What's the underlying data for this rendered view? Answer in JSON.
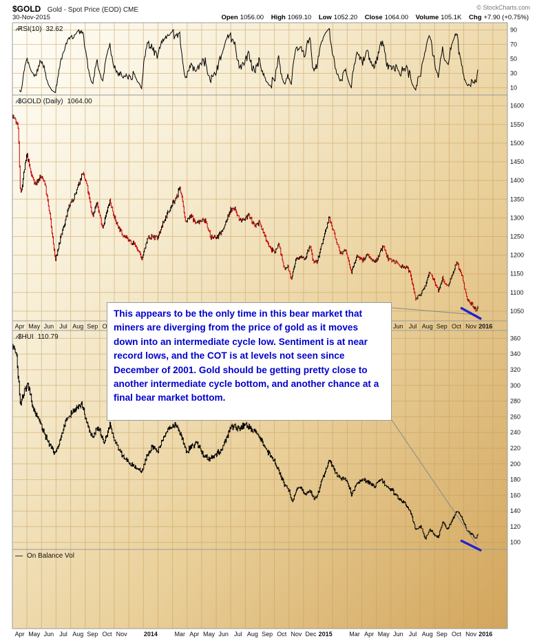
{
  "header": {
    "symbol": "$GOLD",
    "description": "Gold - Spot Price (EOD) CME",
    "copyright": "© StockCharts.com",
    "date": "30-Nov-2015",
    "quote": [
      {
        "label": "Open",
        "value": "1056.00"
      },
      {
        "label": "High",
        "value": "1069.10"
      },
      {
        "label": "Low",
        "value": "1052.20"
      },
      {
        "label": "Close",
        "value": "1064.00"
      },
      {
        "label": "Volume",
        "value": "105.1K"
      },
      {
        "label": "Chg",
        "value": "+7.90 (+0.75%)"
      }
    ]
  },
  "panels": {
    "rsi": {
      "name": "RSI(10)",
      "value": "32.62"
    },
    "gold": {
      "name": "$GOLD (Daily)",
      "value": "1064.00"
    },
    "hui": {
      "name": "$HUI",
      "value": "110.79"
    },
    "obv": {
      "name": "On Balance Vol"
    }
  },
  "annotation": {
    "text": "This appears to be the only time in this bear market that miners are diverging from the price of gold as it moves down into an intermediate cycle low. Sentiment is at near record lows, and the COT is at levels not seen since December of 2001. Gold should be getting pretty close to another intermediate cycle bottom, and another chance at a final bear market bottom."
  },
  "x_axis": {
    "unit": "months from Apr-2013",
    "total_months": 34,
    "labels": [
      {
        "t": 0,
        "label": "Apr"
      },
      {
        "t": 1,
        "label": "May"
      },
      {
        "t": 2,
        "label": "Jun"
      },
      {
        "t": 3,
        "label": "Jul"
      },
      {
        "t": 4,
        "label": "Aug"
      },
      {
        "t": 5,
        "label": "Sep"
      },
      {
        "t": 6,
        "label": "Oct"
      },
      {
        "t": 7,
        "label": "Nov"
      },
      {
        "t": 9,
        "label": "2014",
        "bold": true
      },
      {
        "t": 11,
        "label": "Mar"
      },
      {
        "t": 12,
        "label": "Apr"
      },
      {
        "t": 13,
        "label": "May"
      },
      {
        "t": 14,
        "label": "Jun"
      },
      {
        "t": 15,
        "label": "Jul"
      },
      {
        "t": 16,
        "label": "Aug"
      },
      {
        "t": 17,
        "label": "Sep"
      },
      {
        "t": 18,
        "label": "Oct"
      },
      {
        "t": 19,
        "label": "Nov"
      },
      {
        "t": 20,
        "label": "Dec"
      },
      {
        "t": 21,
        "label": "2015",
        "bold": true
      },
      {
        "t": 23,
        "label": "Mar"
      },
      {
        "t": 24,
        "label": "Apr"
      },
      {
        "t": 25,
        "label": "May"
      },
      {
        "t": 26,
        "label": "Jun"
      },
      {
        "t": 27,
        "label": "Jul"
      },
      {
        "t": 28,
        "label": "Aug"
      },
      {
        "t": 29,
        "label": "Sep"
      },
      {
        "t": 30,
        "label": "Oct"
      },
      {
        "t": 31,
        "label": "Nov"
      },
      {
        "t": 32,
        "label": "2016",
        "bold": true
      }
    ]
  },
  "chart_data": [
    {
      "type": "line",
      "name": "RSI(10)",
      "derived_from": "$GOLD daily closes",
      "period": 10,
      "last_value": 32.62,
      "ylim": [
        0,
        100
      ],
      "yticks": [
        90,
        70,
        50,
        30,
        10
      ]
    },
    {
      "type": "candlestick",
      "name": "$GOLD Gold - Spot Price (EOD) Daily",
      "last_value": 1064.0,
      "ohlc_today": {
        "open": 1056.0,
        "high": 1069.1,
        "low": 1052.2,
        "close": 1064.0
      },
      "ylim": [
        1024,
        1629
      ],
      "yticks": [
        1600,
        1550,
        1500,
        1450,
        1400,
        1350,
        1300,
        1250,
        1200,
        1150,
        1100,
        1050
      ],
      "x_unit": "months from Apr-2013",
      "anchors_t_value": [
        [
          0,
          1575
        ],
        [
          0.4,
          1545
        ],
        [
          0.55,
          1355
        ],
        [
          0.8,
          1425
        ],
        [
          1.0,
          1470
        ],
        [
          1.3,
          1415
        ],
        [
          1.6,
          1390
        ],
        [
          1.9,
          1410
        ],
        [
          2.2,
          1400
        ],
        [
          2.6,
          1300
        ],
        [
          2.95,
          1185
        ],
        [
          3.3,
          1245
        ],
        [
          3.9,
          1330
        ],
        [
          4.4,
          1370
        ],
        [
          4.8,
          1420
        ],
        [
          5.1,
          1390
        ],
        [
          5.5,
          1305
        ],
        [
          5.8,
          1340
        ],
        [
          6.2,
          1275
        ],
        [
          6.7,
          1345
        ],
        [
          7.1,
          1290
        ],
        [
          7.5,
          1260
        ],
        [
          7.95,
          1240
        ],
        [
          8.4,
          1230
        ],
        [
          8.9,
          1190
        ],
        [
          9.3,
          1245
        ],
        [
          9.6,
          1250
        ],
        [
          9.95,
          1245
        ],
        [
          10.4,
          1290
        ],
        [
          10.8,
          1325
        ],
        [
          11.3,
          1355
        ],
        [
          11.5,
          1385
        ],
        [
          11.9,
          1290
        ],
        [
          12.3,
          1305
        ],
        [
          12.6,
          1285
        ],
        [
          12.95,
          1295
        ],
        [
          13.3,
          1290
        ],
        [
          13.6,
          1250
        ],
        [
          14.0,
          1245
        ],
        [
          14.5,
          1270
        ],
        [
          14.95,
          1320
        ],
        [
          15.3,
          1325
        ],
        [
          15.6,
          1295
        ],
        [
          15.95,
          1290
        ],
        [
          16.2,
          1310
        ],
        [
          16.6,
          1280
        ],
        [
          16.95,
          1288
        ],
        [
          17.3,
          1255
        ],
        [
          17.75,
          1215
        ],
        [
          18.05,
          1210
        ],
        [
          18.3,
          1232
        ],
        [
          18.65,
          1165
        ],
        [
          18.9,
          1172
        ],
        [
          19.15,
          1135
        ],
        [
          19.5,
          1190
        ],
        [
          19.8,
          1200
        ],
        [
          20.1,
          1190
        ],
        [
          20.45,
          1225
        ],
        [
          20.7,
          1175
        ],
        [
          20.95,
          1185
        ],
        [
          21.3,
          1235
        ],
        [
          21.75,
          1300
        ],
        [
          22.1,
          1260
        ],
        [
          22.5,
          1205
        ],
        [
          22.9,
          1212
        ],
        [
          23.3,
          1155
        ],
        [
          23.7,
          1200
        ],
        [
          24.05,
          1185
        ],
        [
          24.4,
          1205
        ],
        [
          24.75,
          1180
        ],
        [
          25.05,
          1190
        ],
        [
          25.45,
          1225
        ],
        [
          25.8,
          1190
        ],
        [
          26.2,
          1185
        ],
        [
          26.6,
          1172
        ],
        [
          26.95,
          1170
        ],
        [
          27.3,
          1155
        ],
        [
          27.7,
          1085
        ],
        [
          28.05,
          1092
        ],
        [
          28.35,
          1120
        ],
        [
          28.65,
          1158
        ],
        [
          28.95,
          1135
        ],
        [
          29.25,
          1105
        ],
        [
          29.55,
          1140
        ],
        [
          29.85,
          1115
        ],
        [
          30.15,
          1140
        ],
        [
          30.5,
          1182
        ],
        [
          30.9,
          1140
        ],
        [
          31.2,
          1085
        ],
        [
          31.55,
          1068
        ],
        [
          31.85,
          1052
        ],
        [
          31.97,
          1064
        ]
      ]
    },
    {
      "type": "ohlc-bars",
      "name": "$HUI Gold Bugs Index",
      "last_value": 110.79,
      "ylim": [
        91,
        370
      ],
      "yticks": [
        360,
        340,
        320,
        300,
        280,
        260,
        240,
        220,
        200,
        180,
        160,
        140,
        120,
        100
      ],
      "x_unit": "months from Apr-2013",
      "anchors_t_value": [
        [
          0,
          352
        ],
        [
          0.3,
          335
        ],
        [
          0.55,
          275
        ],
        [
          0.85,
          295
        ],
        [
          1.1,
          300
        ],
        [
          1.45,
          270
        ],
        [
          1.9,
          252
        ],
        [
          2.4,
          230
        ],
        [
          2.95,
          212
        ],
        [
          3.25,
          228
        ],
        [
          3.7,
          258
        ],
        [
          4.3,
          268
        ],
        [
          4.75,
          278
        ],
        [
          5.15,
          250
        ],
        [
          5.5,
          235
        ],
        [
          5.9,
          247
        ],
        [
          6.3,
          226
        ],
        [
          6.7,
          250
        ],
        [
          7.1,
          226
        ],
        [
          7.5,
          212
        ],
        [
          7.95,
          202
        ],
        [
          8.4,
          196
        ],
        [
          8.9,
          190
        ],
        [
          9.25,
          212
        ],
        [
          9.6,
          222
        ],
        [
          9.95,
          215
        ],
        [
          10.4,
          235
        ],
        [
          10.85,
          246
        ],
        [
          11.2,
          250
        ],
        [
          11.6,
          235
        ],
        [
          11.95,
          216
        ],
        [
          12.3,
          222
        ],
        [
          12.7,
          226
        ],
        [
          13.1,
          211
        ],
        [
          13.5,
          206
        ],
        [
          13.95,
          212
        ],
        [
          14.4,
          218
        ],
        [
          14.85,
          240
        ],
        [
          15.2,
          250
        ],
        [
          15.55,
          244
        ],
        [
          15.95,
          251
        ],
        [
          16.3,
          246
        ],
        [
          16.7,
          240
        ],
        [
          17.1,
          230
        ],
        [
          17.5,
          216
        ],
        [
          17.95,
          206
        ],
        [
          18.3,
          191
        ],
        [
          18.7,
          172
        ],
        [
          19.0,
          166
        ],
        [
          19.2,
          150
        ],
        [
          19.5,
          166
        ],
        [
          19.8,
          171
        ],
        [
          20.1,
          161
        ],
        [
          20.45,
          166
        ],
        [
          20.7,
          156
        ],
        [
          20.95,
          161
        ],
        [
          21.3,
          181
        ],
        [
          21.75,
          206
        ],
        [
          22.1,
          191
        ],
        [
          22.5,
          181
        ],
        [
          22.95,
          181
        ],
        [
          23.3,
          161
        ],
        [
          23.7,
          176
        ],
        [
          24.1,
          181
        ],
        [
          24.5,
          176
        ],
        [
          24.9,
          171
        ],
        [
          25.3,
          181
        ],
        [
          25.7,
          171
        ],
        [
          26.1,
          166
        ],
        [
          26.5,
          156
        ],
        [
          26.95,
          151
        ],
        [
          27.3,
          141
        ],
        [
          27.7,
          116
        ],
        [
          28.05,
          121
        ],
        [
          28.35,
          104
        ],
        [
          28.65,
          116
        ],
        [
          28.95,
          111
        ],
        [
          29.25,
          106
        ],
        [
          29.55,
          126
        ],
        [
          29.85,
          116
        ],
        [
          30.15,
          126
        ],
        [
          30.5,
          140
        ],
        [
          30.9,
          131
        ],
        [
          31.2,
          116
        ],
        [
          31.55,
          110
        ],
        [
          31.85,
          104
        ],
        [
          31.97,
          110.79
        ]
      ]
    },
    {
      "type": "line",
      "name": "On Balance Vol",
      "visible_values": "none"
    }
  ],
  "highlights": [
    {
      "panel": "gold",
      "color": "#2222CC",
      "from_t_value": [
        30.85,
        1058
      ],
      "to_t_value": [
        32.15,
        1030
      ]
    },
    {
      "panel": "hui",
      "color": "#2222CC",
      "from_t_value": [
        30.85,
        102
      ],
      "to_t_value": [
        32.15,
        90
      ]
    }
  ],
  "colors": {
    "up": "#000000",
    "down": "#CC0000",
    "rsi_line": "#000000",
    "grid": "#C49A55",
    "panel_border": "#9A9A9A",
    "bg_top_left": "#FFFEF8",
    "bg_bottom_right": "#D2A55C",
    "annotation_text": "#0000CC",
    "callout": "#888888"
  }
}
